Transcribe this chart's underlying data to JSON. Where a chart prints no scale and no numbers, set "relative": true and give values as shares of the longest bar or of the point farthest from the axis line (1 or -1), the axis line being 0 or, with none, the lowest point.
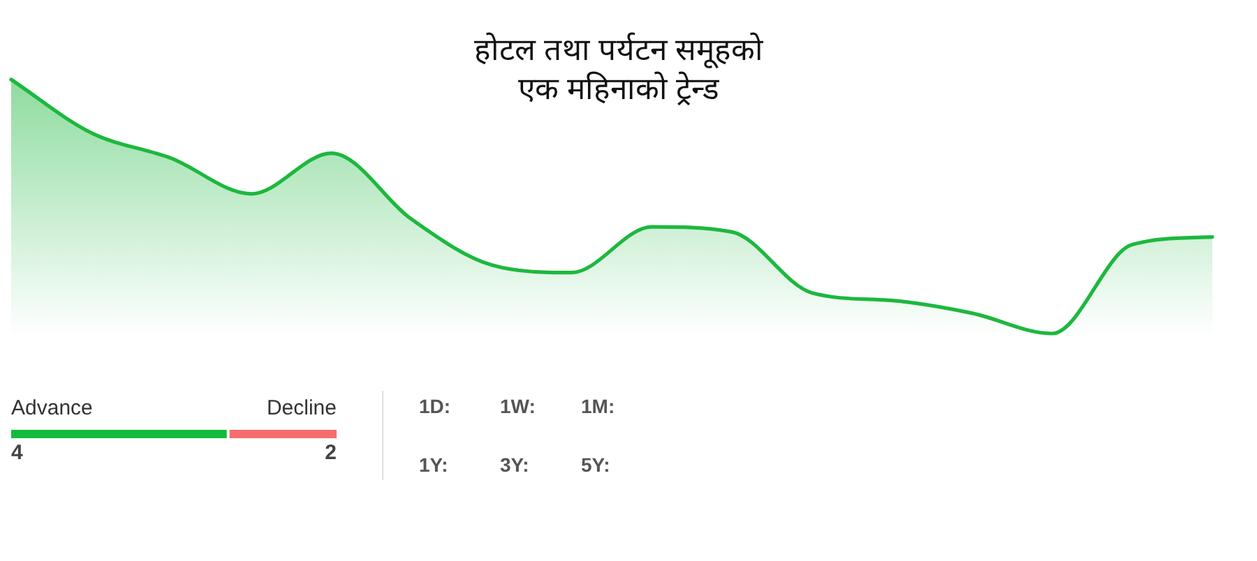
{
  "chart_data": [
    {
      "type": "area",
      "title": "होटल तथा पर्यटन समूहको एक महिनाको ट्रेन्ड",
      "relative": true,
      "categories": [
        null,
        null,
        null,
        null,
        null,
        null,
        null,
        null,
        null,
        null,
        null,
        null,
        null,
        null,
        null,
        null
      ],
      "series": [
        {
          "color": "#1db83e",
          "values": [
            1,
            0.79,
            0.69,
            0.55,
            0.71,
            0.45,
            0.27,
            0.24,
            0.42,
            0.4,
            0.16,
            0.13,
            0.08,
            0,
            0.35,
            0.38
          ]
        }
      ]
    },
    {
      "type": "bar",
      "orientation": "horizontal",
      "stacked": true,
      "categories": [
        null
      ],
      "data_labels": true,
      "series": [
        {
          "name": "Advance",
          "color": "#13bb3d",
          "values": [
            4
          ]
        },
        {
          "name": "Decline",
          "color": "#f76d6d",
          "values": [
            2
          ]
        }
      ]
    },
    {
      "type": "other",
      "annotations": [
        "1D:",
        "1W:",
        "1M:",
        "1Y:",
        "3Y:",
        "5Y:"
      ]
    }
  ]
}
